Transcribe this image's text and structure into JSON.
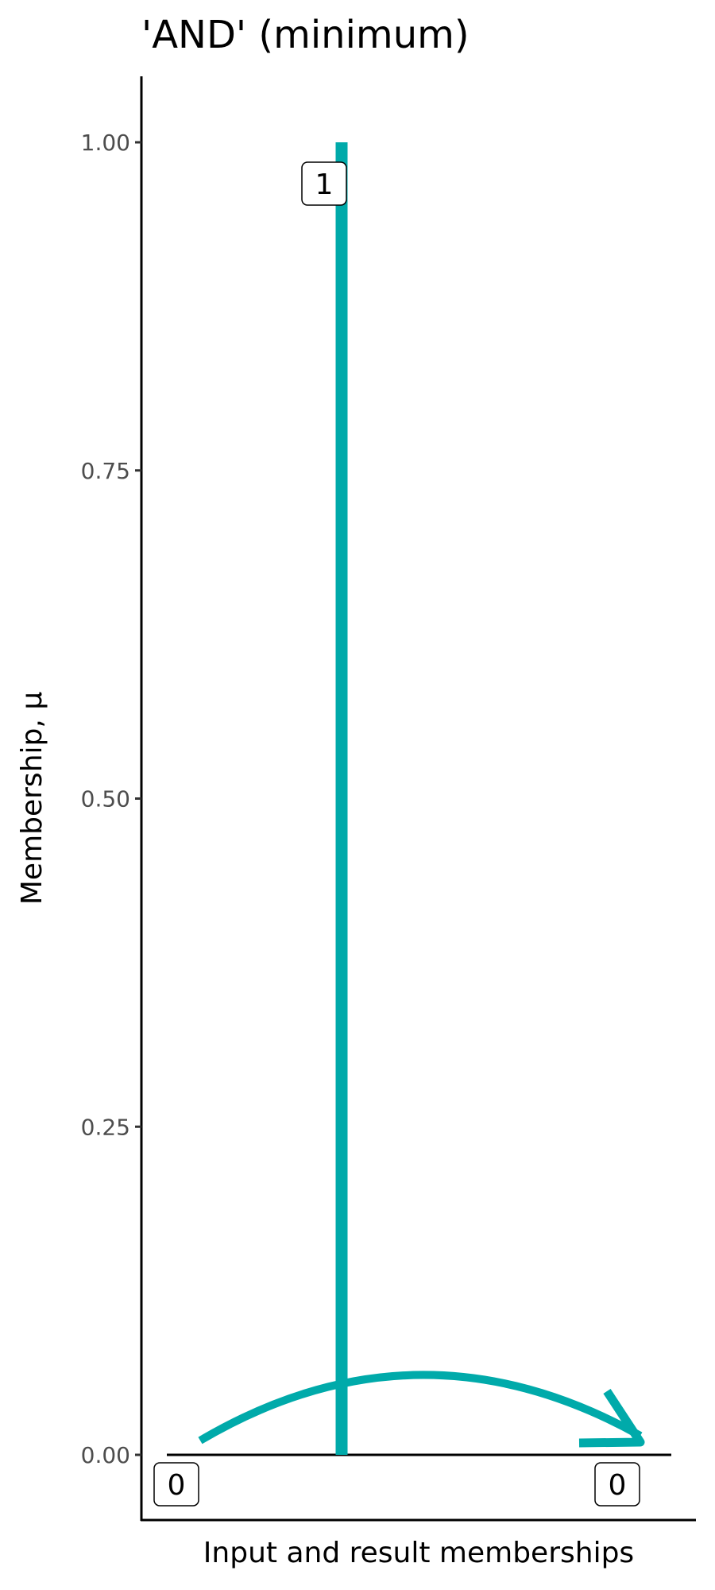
{
  "chart_data": {
    "type": "line",
    "title": "'AND' (minimum)",
    "xlabel": "Input and result memberships",
    "ylabel": "Membership, μ",
    "ylim": [
      -0.05,
      1.05
    ],
    "yticks": [
      "0.00",
      "0.25",
      "0.50",
      "0.75",
      "1.00"
    ],
    "ytick_values": [
      0,
      0.25,
      0.5,
      0.75,
      1
    ],
    "grid": false,
    "inputs": [
      {
        "label": "0",
        "value": 0
      },
      {
        "label": "1",
        "value": 1
      }
    ],
    "result": {
      "label": "0",
      "value": 0
    },
    "arrow": "from input 0 to result",
    "colors": {
      "segment": "#00AAAA",
      "axis": "#000000",
      "tick_text": "#4D4D4D"
    }
  }
}
